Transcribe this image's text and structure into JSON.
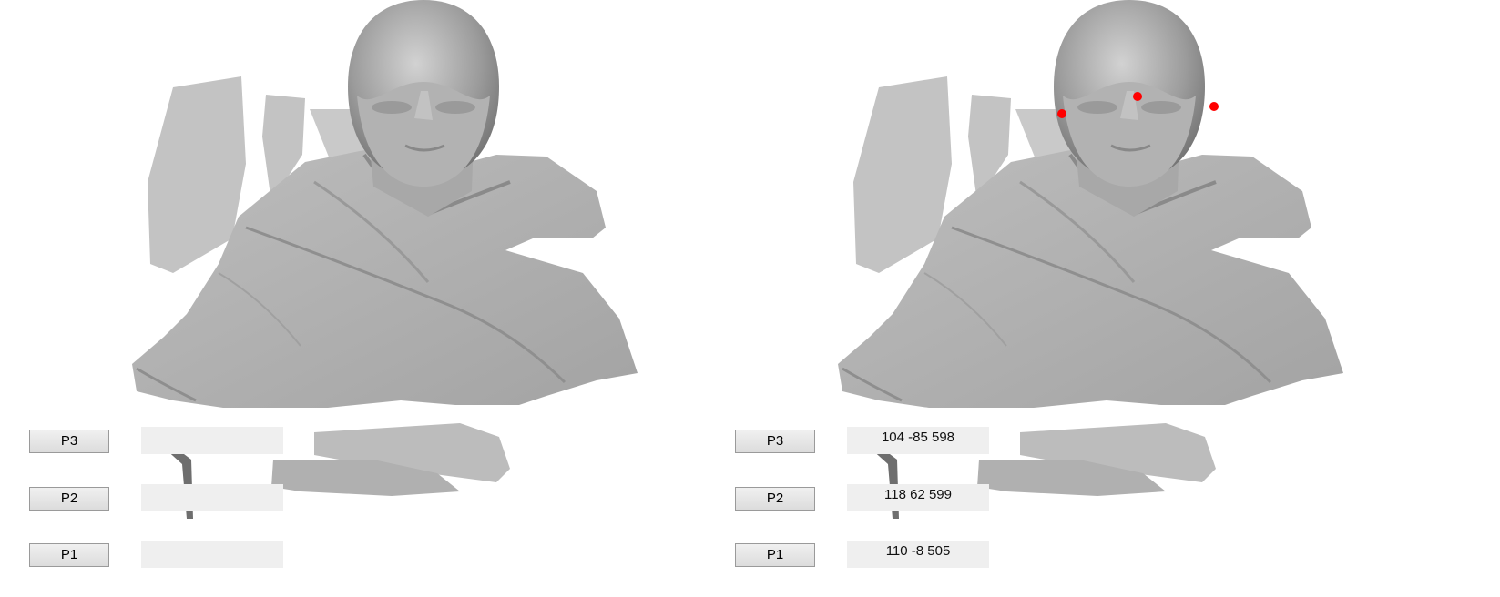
{
  "colors": {
    "background": "#ffffff",
    "mesh": "#b8b8b8",
    "landmark": "#ff0000",
    "field_bg": "#efefef"
  },
  "left_panel": {
    "rows": [
      {
        "button": "P3",
        "value": ""
      },
      {
        "button": "P2",
        "value": ""
      },
      {
        "button": "P1",
        "value": ""
      }
    ]
  },
  "right_panel": {
    "rows": [
      {
        "button": "P3",
        "value": "104 -85 598"
      },
      {
        "button": "P2",
        "value": "118 62 599"
      },
      {
        "button": "P1",
        "value": "110 -8 505"
      }
    ],
    "landmark_count": 3
  }
}
